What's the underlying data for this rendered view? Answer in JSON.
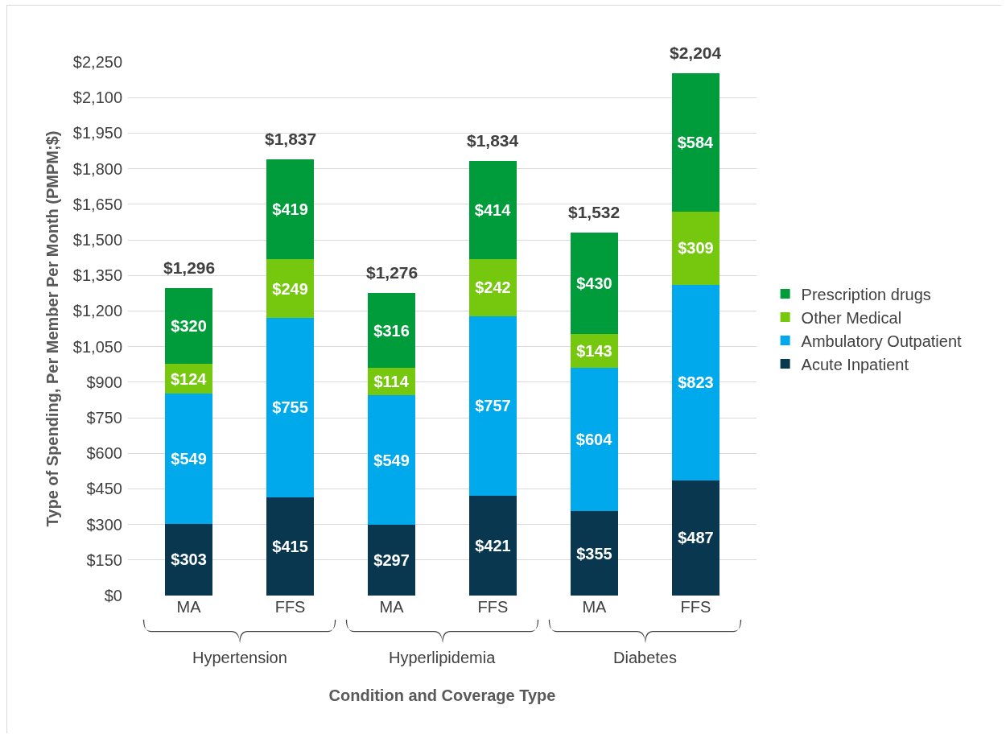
{
  "chart_data": {
    "type": "bar",
    "stacked": true,
    "xlabel": "Condition and Coverage Type",
    "ylabel": "Type of Spending, Per Member Per Month (PMPM;$)",
    "categories": [
      "MA",
      "FFS",
      "MA",
      "FFS",
      "MA",
      "FFS"
    ],
    "series": [
      {
        "name": "Acute Inpatient",
        "color": "#08374f",
        "values": [
          303,
          415,
          297,
          421,
          355,
          487
        ],
        "value_labels": [
          "$303",
          "$415",
          "$297",
          "$421",
          "$355",
          "$487"
        ]
      },
      {
        "name": "Ambulatory Outpatient",
        "color": "#00a8ec",
        "values": [
          549,
          755,
          549,
          757,
          604,
          823
        ],
        "value_labels": [
          "$549",
          "$755",
          "$549",
          "$757",
          "$604",
          "$823"
        ]
      },
      {
        "name": "Other Medical",
        "color": "#76c80e",
        "values": [
          124,
          249,
          114,
          242,
          143,
          309
        ],
        "value_labels": [
          "$124",
          "$249",
          "$114",
          "$242",
          "$143",
          "$309"
        ]
      },
      {
        "name": "Prescription drugs",
        "color": "#009b3a",
        "values": [
          320,
          419,
          316,
          414,
          430,
          584
        ],
        "value_labels": [
          "$320",
          "$419",
          "$316",
          "$414",
          "$430",
          "$584"
        ]
      }
    ],
    "totals": [
      "$1,296",
      "$1,837",
      "$1,276",
      "$1,834",
      "$1,532",
      "$2,204"
    ],
    "annotations": [
      "Hypertension",
      "Hyperlipidemia",
      "Diabetes"
    ],
    "ylim": [
      0,
      2250
    ],
    "yticks": [
      {
        "value": 0,
        "label": "$0"
      },
      {
        "value": 150,
        "label": "$150"
      },
      {
        "value": 300,
        "label": "$300"
      },
      {
        "value": 450,
        "label": "$450"
      },
      {
        "value": 600,
        "label": "$600"
      },
      {
        "value": 750,
        "label": "$750"
      },
      {
        "value": 900,
        "label": "$900"
      },
      {
        "value": 1050,
        "label": "$1,050"
      },
      {
        "value": 1200,
        "label": "$1,200"
      },
      {
        "value": 1350,
        "label": "$1,350"
      },
      {
        "value": 1500,
        "label": "$1,500"
      },
      {
        "value": 1650,
        "label": "$1,650"
      },
      {
        "value": 1800,
        "label": "$1,800"
      },
      {
        "value": 1950,
        "label": "$1,950"
      },
      {
        "value": 2100,
        "label": "$2,100"
      },
      {
        "value": 2250,
        "label": "$2,250"
      }
    ],
    "grid": "y",
    "legend": "right"
  }
}
